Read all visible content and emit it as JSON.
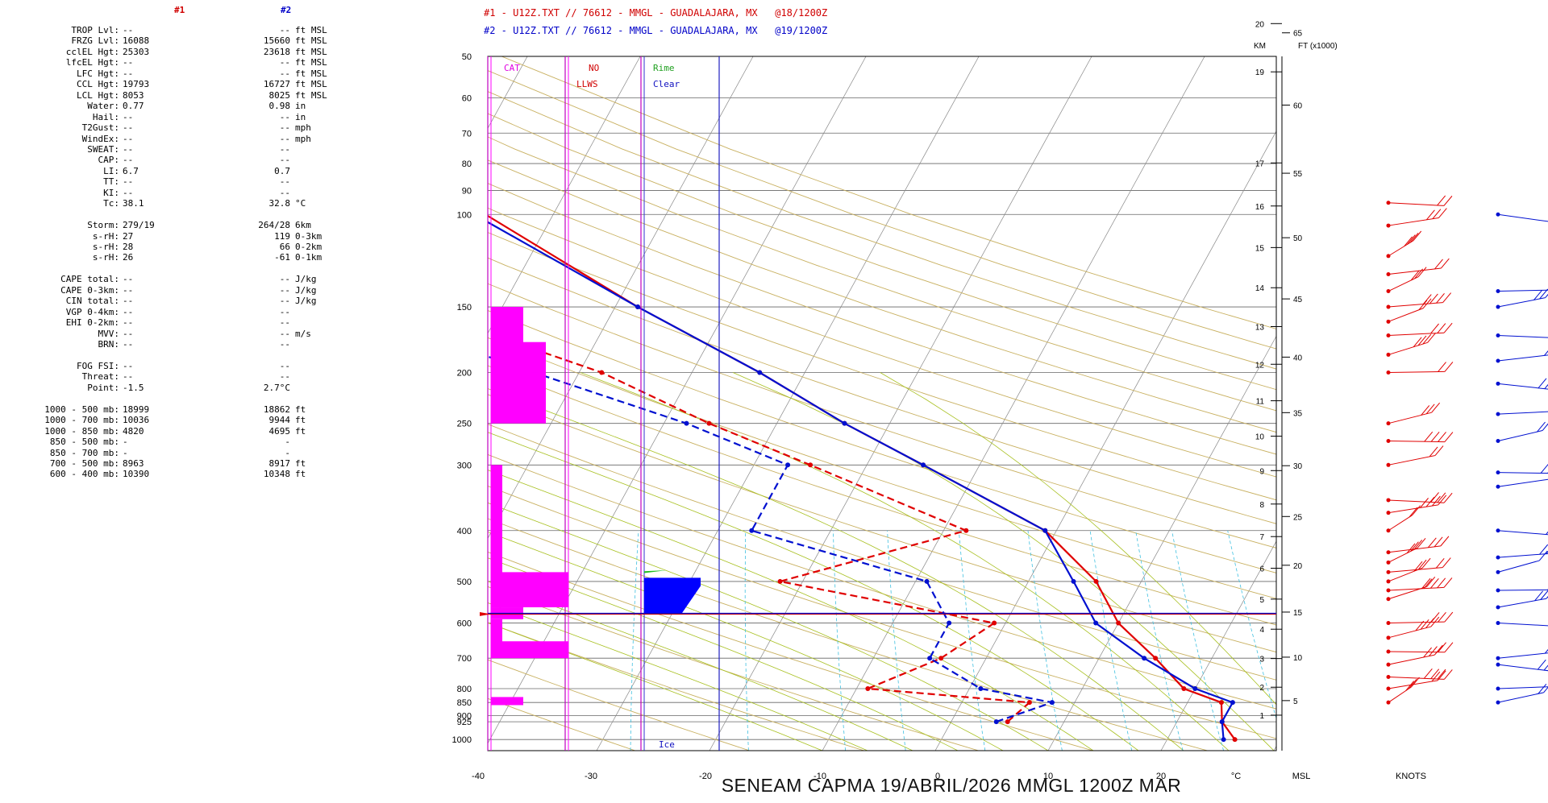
{
  "header": {
    "line1": "#1 - U12Z.TXT // 76612 - MMGL - GUADALAJARA, MX   @18/1200Z",
    "line2": "#2 - U12Z.TXT // 76612 - MMGL - GUADALAJARA, MX   @19/1200Z",
    "col1": "#1",
    "col2": "#2"
  },
  "params": [
    {
      "label": "TROP Lvl:",
      "v1": "--",
      "v2": "--",
      "unit": "ft MSL"
    },
    {
      "label": "FRZG Lvl:",
      "v1": "16088",
      "v2": "15660",
      "unit": "ft MSL"
    },
    {
      "label": "cclEL Hgt:",
      "v1": "25303",
      "v2": "23618",
      "unit": "ft MSL"
    },
    {
      "label": "lfcEL Hgt:",
      "v1": "--",
      "v2": "--",
      "unit": "ft MSL"
    },
    {
      "label": "LFC Hgt:",
      "v1": "--",
      "v2": "--",
      "unit": "ft MSL"
    },
    {
      "label": "CCL Hgt:",
      "v1": "19793",
      "v2": "16727",
      "unit": "ft MSL"
    },
    {
      "label": "LCL Hgt:",
      "v1": "8053",
      "v2": "8025",
      "unit": "ft MSL"
    },
    {
      "label": "Water:",
      "v1": "0.77",
      "v2": "0.98",
      "unit": "in"
    },
    {
      "label": "Hail:",
      "v1": "--",
      "v2": "--",
      "unit": "in"
    },
    {
      "label": "T2Gust:",
      "v1": "--",
      "v2": "--",
      "unit": "mph"
    },
    {
      "label": "WindEx:",
      "v1": "--",
      "v2": "--",
      "unit": "mph"
    },
    {
      "label": "SWEAT:",
      "v1": "--",
      "v2": "--",
      "unit": ""
    },
    {
      "label": "CAP:",
      "v1": "--",
      "v2": "--",
      "unit": ""
    },
    {
      "label": "LI:",
      "v1": "6.7",
      "v2": "0.7",
      "unit": ""
    },
    {
      "label": "TT:",
      "v1": "--",
      "v2": "--",
      "unit": ""
    },
    {
      "label": "KI:",
      "v1": "--",
      "v2": "--",
      "unit": ""
    },
    {
      "label": "Tc:",
      "v1": "38.1",
      "v2": "32.8",
      "unit": "°C"
    },
    {
      "label": "",
      "v1": "",
      "v2": "",
      "unit": ""
    },
    {
      "label": "Storm:",
      "v1": "279/19",
      "v2": "264/28",
      "unit": "6km"
    },
    {
      "label": "s-rH:",
      "v1": "27",
      "v2": "119",
      "unit": "0-3km"
    },
    {
      "label": "s-rH:",
      "v1": "28",
      "v2": "66",
      "unit": "0-2km"
    },
    {
      "label": "s-rH:",
      "v1": "26",
      "v2": "-61",
      "unit": "0-1km"
    },
    {
      "label": "",
      "v1": "",
      "v2": "",
      "unit": ""
    },
    {
      "label": "CAPE total:",
      "v1": "--",
      "v2": "--",
      "unit": "J/kg"
    },
    {
      "label": "CAPE 0-3km:",
      "v1": "--",
      "v2": "--",
      "unit": "J/kg"
    },
    {
      "label": "CIN total:",
      "v1": "--",
      "v2": "--",
      "unit": "J/kg"
    },
    {
      "label": "VGP 0-4km:",
      "v1": "--",
      "v2": "--",
      "unit": ""
    },
    {
      "label": "EHI 0-2km:",
      "v1": "--",
      "v2": "--",
      "unit": ""
    },
    {
      "label": "MVV:",
      "v1": "--",
      "v2": "--",
      "unit": "m/s"
    },
    {
      "label": "BRN:",
      "v1": "--",
      "v2": "--",
      "unit": ""
    },
    {
      "label": "",
      "v1": "",
      "v2": "",
      "unit": ""
    },
    {
      "label": "FOG FSI:",
      "v1": "--",
      "v2": "--",
      "unit": ""
    },
    {
      "label": "Threat:",
      "v1": "--",
      "v2": "--",
      "unit": ""
    },
    {
      "label": "Point:",
      "v1": "-1.5",
      "v2": "2.7°C",
      "unit": ""
    },
    {
      "label": "",
      "v1": "",
      "v2": "",
      "unit": ""
    },
    {
      "label": "1000 - 500 mb:",
      "v1": "18999",
      "v2": "18862",
      "unit": "ft"
    },
    {
      "label": "1000 - 700 mb:",
      "v1": "10036",
      "v2": "9944",
      "unit": "ft"
    },
    {
      "label": "1000 - 850 mb:",
      "v1": "4820",
      "v2": "4695",
      "unit": "ft"
    },
    {
      "label": "850 - 500 mb:",
      "v1": "-",
      "v2": "-",
      "unit": ""
    },
    {
      "label": "850 - 700 mb:",
      "v1": "-",
      "v2": "-",
      "unit": ""
    },
    {
      "label": "700 - 500 mb:",
      "v1": "8963",
      "v2": "8917",
      "unit": "ft"
    },
    {
      "label": "600 - 400 mb:",
      "v1": "10390",
      "v2": "10348",
      "unit": "ft"
    }
  ],
  "footer": "SENEAM   CAPMA   19/ABRIL/2026   MMGL   1200Z   MAR",
  "chart_data": {
    "type": "skew-t",
    "pressure_labels": [
      50,
      60,
      70,
      80,
      90,
      100,
      150,
      200,
      250,
      300,
      400,
      500,
      600,
      700,
      800,
      850,
      900,
      925,
      1000
    ],
    "pressure_unit": "mb",
    "temp_ticks": [
      -40,
      -30,
      -20,
      -10,
      0,
      10,
      20
    ],
    "temp_unit": "°C",
    "km_ticks": [
      1,
      2,
      3,
      4,
      5,
      6,
      7,
      8,
      9,
      10,
      11,
      12,
      13,
      14,
      15,
      16,
      17,
      19,
      20
    ],
    "ft_ticks": [
      5,
      10,
      15,
      20,
      25,
      30,
      35,
      40,
      45,
      50,
      55,
      60,
      65
    ],
    "km_label": "KM",
    "ft_label": "FT (x1000)",
    "msl_label": "MSL",
    "knots_label": "KNOTS",
    "columns": {
      "cat": "CAT",
      "no": "NO",
      "llws": "LLWS",
      "rime": "Rime",
      "clear": "Clear",
      "ice": "Ice"
    },
    "colors": {
      "run1": "#e00000",
      "run2": "#0010d0",
      "cat": "#ff00ff",
      "rime": "#20a020",
      "grid": "#000000",
      "dry": "#c8b060",
      "moist": "#a8c020",
      "mix": "#40c0e0"
    },
    "series": [
      {
        "name": "#1 T",
        "points": [
          [
            1000,
            26
          ],
          [
            925,
            24
          ],
          [
            850,
            23
          ],
          [
            800,
            19
          ],
          [
            700,
            15
          ],
          [
            600,
            10
          ],
          [
            500,
            6
          ],
          [
            400,
            -1
          ],
          [
            300,
            -15
          ],
          [
            250,
            -24
          ],
          [
            200,
            -34
          ],
          [
            150,
            -48
          ],
          [
            100,
            -66
          ]
        ]
      },
      {
        "name": "#1 Td",
        "points": [
          [
            925,
            5
          ],
          [
            850,
            6
          ],
          [
            800,
            -9
          ],
          [
            700,
            -4
          ],
          [
            600,
            -1
          ],
          [
            500,
            -22
          ],
          [
            400,
            -8
          ],
          [
            300,
            -25
          ],
          [
            250,
            -36
          ],
          [
            200,
            -48
          ],
          [
            150,
            -68
          ],
          [
            100,
            -86
          ]
        ]
      },
      {
        "name": "#2 T",
        "points": [
          [
            1000,
            25
          ],
          [
            925,
            24
          ],
          [
            850,
            24
          ],
          [
            800,
            20
          ],
          [
            700,
            14
          ],
          [
            600,
            8
          ],
          [
            500,
            4
          ],
          [
            400,
            -1
          ],
          [
            300,
            -15
          ],
          [
            250,
            -24
          ],
          [
            200,
            -34
          ],
          [
            150,
            -48
          ],
          [
            100,
            -67
          ]
        ]
      },
      {
        "name": "#2 Td",
        "points": [
          [
            925,
            4
          ],
          [
            850,
            8
          ],
          [
            800,
            1
          ],
          [
            700,
            -5
          ],
          [
            600,
            -5
          ],
          [
            500,
            -9
          ],
          [
            400,
            -27
          ],
          [
            300,
            -27
          ],
          [
            250,
            -38
          ],
          [
            200,
            -54
          ],
          [
            150,
            -74
          ],
          [
            100,
            -88
          ]
        ]
      }
    ]
  }
}
